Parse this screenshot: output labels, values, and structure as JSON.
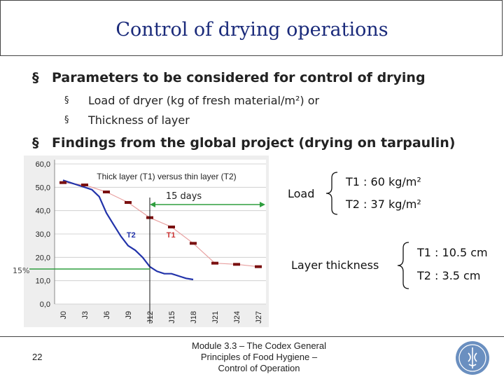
{
  "title": "Control of drying operations",
  "bullets": [
    {
      "text": "Parameters to be considered for control of drying",
      "subitems": [
        "Load of dryer (kg of fresh material/m²) or",
        "Thickness of layer"
      ]
    },
    {
      "text": "Findings from the global project (drying on tarpaulin)",
      "subitems": []
    }
  ],
  "bullet_mark": "§",
  "annotations": {
    "load_label": "Load",
    "t1_load": "T1 : 60 kg/m²",
    "t2_load": "T2 : 37 kg/m²",
    "layer_label": "Layer thickness",
    "t1_layer": "T1 : 10.5 cm",
    "t2_layer": "T2 :  3.5 cm",
    "days_label": "15 days",
    "pct_label": "15%"
  },
  "chart_data": {
    "type": "line",
    "title": "Thick layer (T1) versus thin layer (T2)",
    "categories": [
      "J0",
      "J3",
      "J6",
      "J9",
      "J12",
      "J15",
      "J18",
      "J21",
      "J24",
      "J27"
    ],
    "x_step_days": 3,
    "ylim": [
      0,
      60
    ],
    "yticks": [
      "0,0",
      "10,0",
      "20,0",
      "30,0",
      "40,0",
      "50,0",
      "60,0"
    ],
    "ytick_values": [
      0,
      10,
      20,
      30,
      40,
      50,
      60
    ],
    "grid": true,
    "series": [
      {
        "name": "T1",
        "color": "#cc3333",
        "x": [
          0,
          3,
          6,
          9,
          12,
          15,
          18,
          21,
          24,
          27
        ],
        "y": [
          52,
          51,
          48,
          43.5,
          37,
          33,
          26,
          17.5,
          17,
          16
        ]
      },
      {
        "name": "T2",
        "color": "#2233aa",
        "x": [
          0,
          1,
          2,
          3,
          4,
          5,
          6,
          7,
          8,
          9,
          10,
          11,
          12,
          13,
          14,
          15,
          16,
          17,
          18
        ],
        "y": [
          53,
          52,
          51,
          50,
          49,
          46,
          39,
          34,
          29,
          25,
          23,
          20,
          16,
          14,
          13,
          13,
          12,
          11,
          10.5
        ]
      }
    ],
    "markers": [
      0,
      3,
      6,
      9,
      12,
      15,
      18,
      21,
      24,
      27
    ],
    "vline_day": 12,
    "arrow_from_day": 12,
    "arrow_to_day": 27,
    "hline_value": 15
  }
}
